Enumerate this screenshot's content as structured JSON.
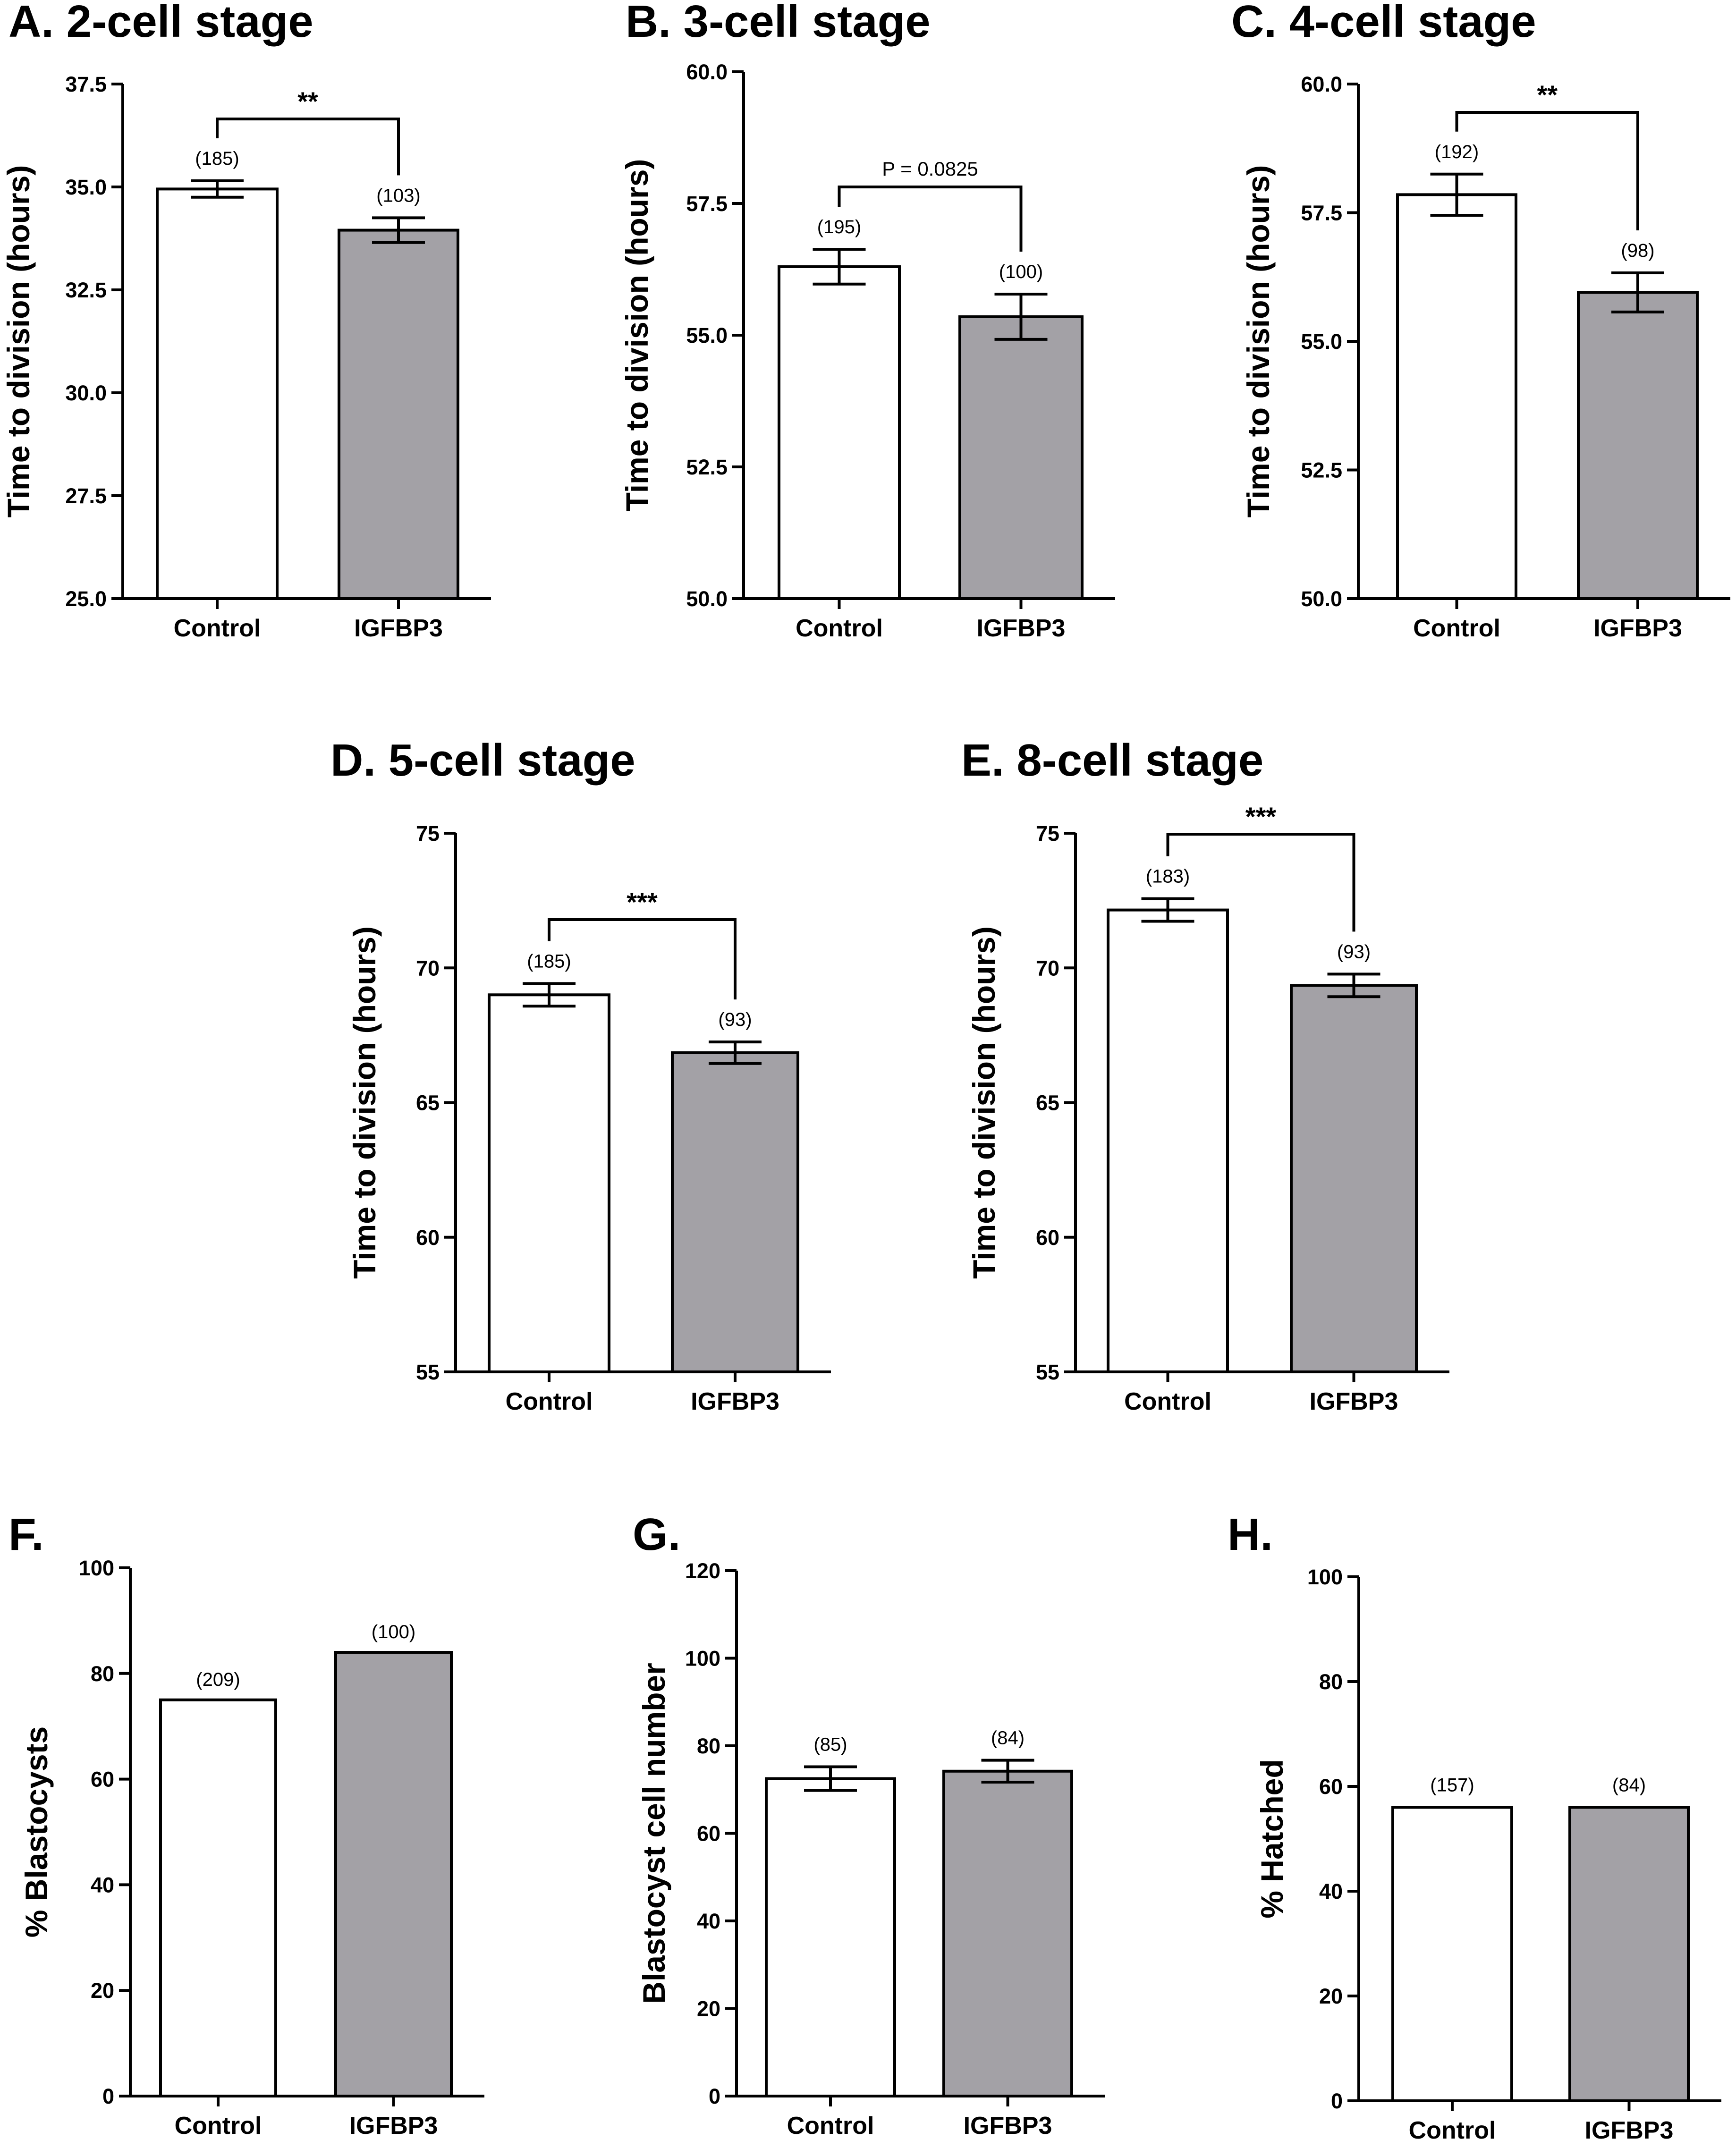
{
  "chart_data": [
    {
      "id": "A",
      "type": "bar",
      "title": "A. 2-cell stage",
      "ylabel": "Time to division (hours)",
      "ylim": [
        25.0,
        37.5
      ],
      "yticks": [
        "25.0",
        "27.5",
        "30.0",
        "32.5",
        "35.0",
        "37.5"
      ],
      "categories": [
        "Control",
        "IGFBP3"
      ],
      "values": [
        34.95,
        33.95
      ],
      "errors": [
        0.2,
        0.3
      ],
      "n_labels": [
        "(185)",
        "(103)"
      ],
      "significance": "**",
      "colors": [
        "#ffffff",
        "#a3a1a6"
      ]
    },
    {
      "id": "B",
      "type": "bar",
      "title": "B. 3-cell stage",
      "ylabel": "Time to division (hours)",
      "ylim": [
        50.0,
        60.0
      ],
      "yticks": [
        "50.0",
        "52.5",
        "55.0",
        "57.5",
        "60.0"
      ],
      "categories": [
        "Control",
        "IGFBP3"
      ],
      "values": [
        56.3,
        55.35
      ],
      "errors": [
        0.33,
        0.43
      ],
      "n_labels": [
        "(195)",
        "(100)"
      ],
      "significance": "P = 0.0825",
      "colors": [
        "#ffffff",
        "#a3a1a6"
      ]
    },
    {
      "id": "C",
      "type": "bar",
      "title": "C. 4-cell stage",
      "ylabel": "Time to division (hours)",
      "ylim": [
        50.0,
        60.0
      ],
      "yticks": [
        "50.0",
        "52.5",
        "55.0",
        "57.5",
        "60.0"
      ],
      "categories": [
        "Control",
        "IGFBP3"
      ],
      "values": [
        57.85,
        55.95
      ],
      "errors": [
        0.4,
        0.38
      ],
      "n_labels": [
        "(192)",
        "(98)"
      ],
      "significance": "**",
      "colors": [
        "#ffffff",
        "#a3a1a6"
      ]
    },
    {
      "id": "D",
      "type": "bar",
      "title": "D. 5-cell stage",
      "ylabel": "Time to division (hours)",
      "ylim": [
        55,
        75
      ],
      "yticks": [
        "55",
        "60",
        "65",
        "70",
        "75"
      ],
      "categories": [
        "Control",
        "IGFBP3"
      ],
      "values": [
        69.0,
        66.85
      ],
      "errors": [
        0.42,
        0.4
      ],
      "n_labels": [
        "(185)",
        "(93)"
      ],
      "significance": "***",
      "colors": [
        "#ffffff",
        "#a3a1a6"
      ]
    },
    {
      "id": "E",
      "type": "bar",
      "title": "E. 8-cell stage",
      "ylabel": "Time to division (hours)",
      "ylim": [
        55,
        75
      ],
      "yticks": [
        "55",
        "60",
        "65",
        "70",
        "75"
      ],
      "categories": [
        "Control",
        "IGFBP3"
      ],
      "values": [
        72.15,
        69.35
      ],
      "errors": [
        0.42,
        0.42
      ],
      "n_labels": [
        "(183)",
        "(93)"
      ],
      "significance": "***",
      "colors": [
        "#ffffff",
        "#a3a1a6"
      ]
    },
    {
      "id": "F",
      "type": "bar",
      "title": "F.",
      "ylabel": "% Blastocysts",
      "ylim": [
        0,
        100
      ],
      "yticks": [
        "0",
        "20",
        "40",
        "60",
        "80",
        "100"
      ],
      "categories": [
        "Control",
        "IGFBP3"
      ],
      "values": [
        75,
        84
      ],
      "errors": [
        0,
        0
      ],
      "n_labels": [
        "(209)",
        "(100)"
      ],
      "significance": "",
      "colors": [
        "#ffffff",
        "#a3a1a6"
      ]
    },
    {
      "id": "G",
      "type": "bar",
      "title": "G.",
      "ylabel": "Blastocyst cell number",
      "ylim": [
        0,
        120
      ],
      "yticks": [
        "0",
        "20",
        "40",
        "60",
        "80",
        "100",
        "120"
      ],
      "categories": [
        "Control",
        "IGFBP3"
      ],
      "values": [
        72.5,
        74.2
      ],
      "errors": [
        2.7,
        2.5
      ],
      "n_labels": [
        "(85)",
        "(84)"
      ],
      "significance": "",
      "colors": [
        "#ffffff",
        "#a3a1a6"
      ]
    },
    {
      "id": "H",
      "type": "bar",
      "title": "H.",
      "ylabel": "% Hatched",
      "ylim": [
        0,
        100
      ],
      "yticks": [
        "0",
        "20",
        "40",
        "60",
        "80",
        "100"
      ],
      "categories": [
        "Control",
        "IGFBP3"
      ],
      "values": [
        56,
        56
      ],
      "errors": [
        0,
        0
      ],
      "n_labels": [
        "(157)",
        "(84)"
      ],
      "significance": "",
      "colors": [
        "#ffffff",
        "#a3a1a6"
      ]
    }
  ]
}
